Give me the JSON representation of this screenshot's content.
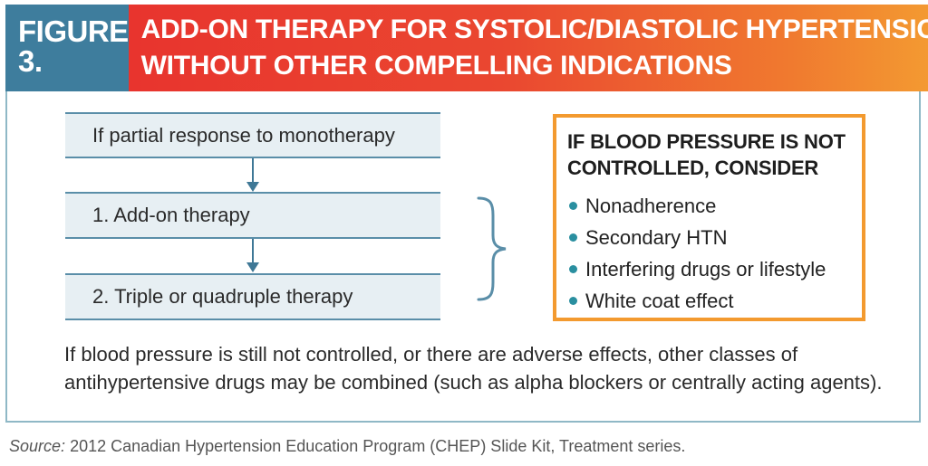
{
  "header": {
    "figure_label": "FIGURE 3.",
    "title_line1": "ADD-ON THERAPY FOR SYSTOLIC/DIASTOLIC HYPERTENSION",
    "title_line2": "WITHOUT OTHER COMPELLING INDICATIONS"
  },
  "flow": {
    "steps": [
      "If partial response to monotherapy",
      "1. Add-on therapy",
      "2. Triple or quadruple therapy"
    ]
  },
  "consider": {
    "title_line1": "IF BLOOD PRESSURE IS NOT",
    "title_line2": "CONTROLLED, CONSIDER",
    "items": [
      "Nonadherence",
      "Secondary HTN",
      "Interfering drugs or lifestyle",
      "White coat effect"
    ]
  },
  "note": {
    "line1": "If blood pressure is still not controlled, or there are adverse effects, other classes of",
    "line2": "antihypertensive drugs may be combined (such as alpha blockers or centrally acting agents)."
  },
  "source": {
    "label": "Source:",
    "text": "2012 Canadian Hypertension Education Program (CHEP) Slide Kit, Treatment series."
  },
  "colors": {
    "label_bg": "#3e7d9d",
    "title_gradient_start": "#e8342e",
    "title_gradient_end": "#f4a032",
    "box_fill": "#e7eff3",
    "box_border": "#5a8ea8",
    "consider_border": "#f39a2f",
    "bullet": "#2a8fa0"
  }
}
